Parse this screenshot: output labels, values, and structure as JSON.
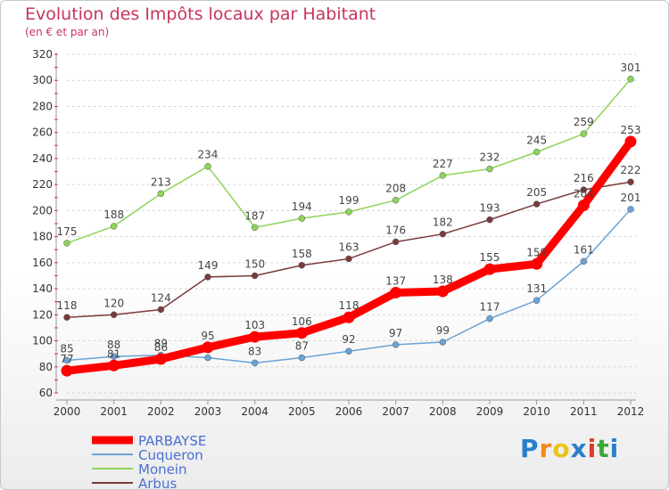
{
  "title": "Evolution des Impôts locaux par Habitant",
  "subtitle": "(en € et par an)",
  "logo": {
    "text": "Proxiti",
    "colors": [
      "#2a7fc9",
      "#f08a1c",
      "#e8c51a",
      "#2a7fc9",
      "#e03a2a",
      "#3aa83a",
      "#2a7fc9"
    ]
  },
  "chart_data": {
    "type": "line",
    "title": "Evolution des Impôts locaux par Habitant",
    "subtitle": "(en € et par an)",
    "xlabel": "",
    "ylabel": "",
    "x": [
      "2000",
      "2001",
      "2002",
      "2003",
      "2004",
      "2005",
      "2006",
      "2007",
      "2008",
      "2009",
      "2010",
      "2011",
      "2012"
    ],
    "ylim": [
      60,
      320
    ],
    "yticks": [
      60,
      80,
      100,
      120,
      140,
      160,
      180,
      200,
      220,
      240,
      260,
      280,
      300,
      320
    ],
    "grid": "horizontal-dashed",
    "legend_position": "bottom-left",
    "series": [
      {
        "name": "PARBAYSE",
        "color": "#ff0000",
        "values": [
          77,
          81,
          86,
          95,
          103,
          106,
          118,
          137,
          138,
          155,
          159,
          204,
          253
        ],
        "labels": [
          "77",
          "81",
          "86",
          "95",
          "103",
          "106",
          "118",
          "137",
          "138",
          "155",
          "159",
          "204",
          "253"
        ]
      },
      {
        "name": "Cuqueron",
        "color": "#6aa3d5",
        "values": [
          85,
          88,
          89,
          87,
          83,
          87,
          92,
          97,
          99,
          117,
          131,
          161,
          201
        ],
        "labels": [
          "85",
          "88",
          "89",
          "",
          "83",
          "87",
          "92",
          "97",
          "99",
          "117",
          "131",
          "161",
          "201"
        ]
      },
      {
        "name": "Monein",
        "color": "#8ed45a",
        "values": [
          175,
          188,
          213,
          234,
          187,
          194,
          199,
          208,
          227,
          232,
          245,
          259,
          301
        ],
        "labels": [
          "175",
          "188",
          "213",
          "234",
          "187",
          "194",
          "199",
          "208",
          "227",
          "232",
          "245",
          "259",
          "301"
        ]
      },
      {
        "name": "Arbus",
        "color": "#7a3b3b",
        "values": [
          118,
          120,
          124,
          149,
          150,
          158,
          163,
          176,
          182,
          193,
          205,
          216,
          222
        ],
        "labels": [
          "118",
          "120",
          "124",
          "149",
          "150",
          "158",
          "163",
          "176",
          "182",
          "193",
          "205",
          "216",
          "222"
        ]
      }
    ]
  }
}
